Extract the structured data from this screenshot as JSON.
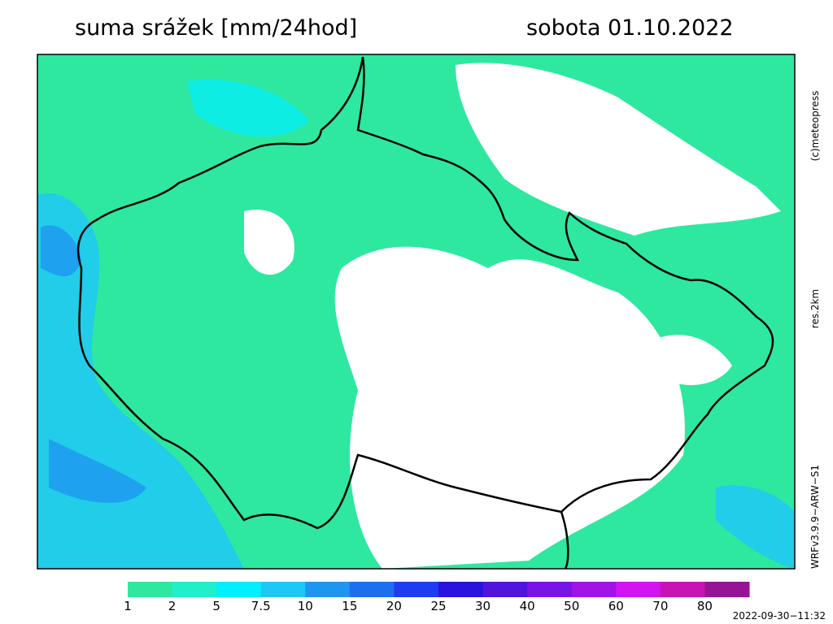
{
  "header": {
    "title": "suma srážek [mm/24hod]",
    "date": "sobota 01.10.2022"
  },
  "side_labels": {
    "credit": "(c)meteopress",
    "resolution": "res.2km",
    "model": "WRFv3.9.9−ARW−S1"
  },
  "legend": {
    "levels": [
      1,
      2,
      5,
      7.5,
      10,
      15,
      20,
      25,
      30,
      40,
      50,
      60,
      70,
      80
    ],
    "colors": [
      "#2ee8a0",
      "#1ff0c8",
      "#00f0ff",
      "#1ec8f5",
      "#1e96f0",
      "#1e6ef0",
      "#1e3cf0",
      "#2814dc",
      "#5014dc",
      "#7814e6",
      "#a014e6",
      "#d214f0",
      "#c814b4",
      "#961496"
    ]
  },
  "timestamp": "2022-09-30−11:32"
}
